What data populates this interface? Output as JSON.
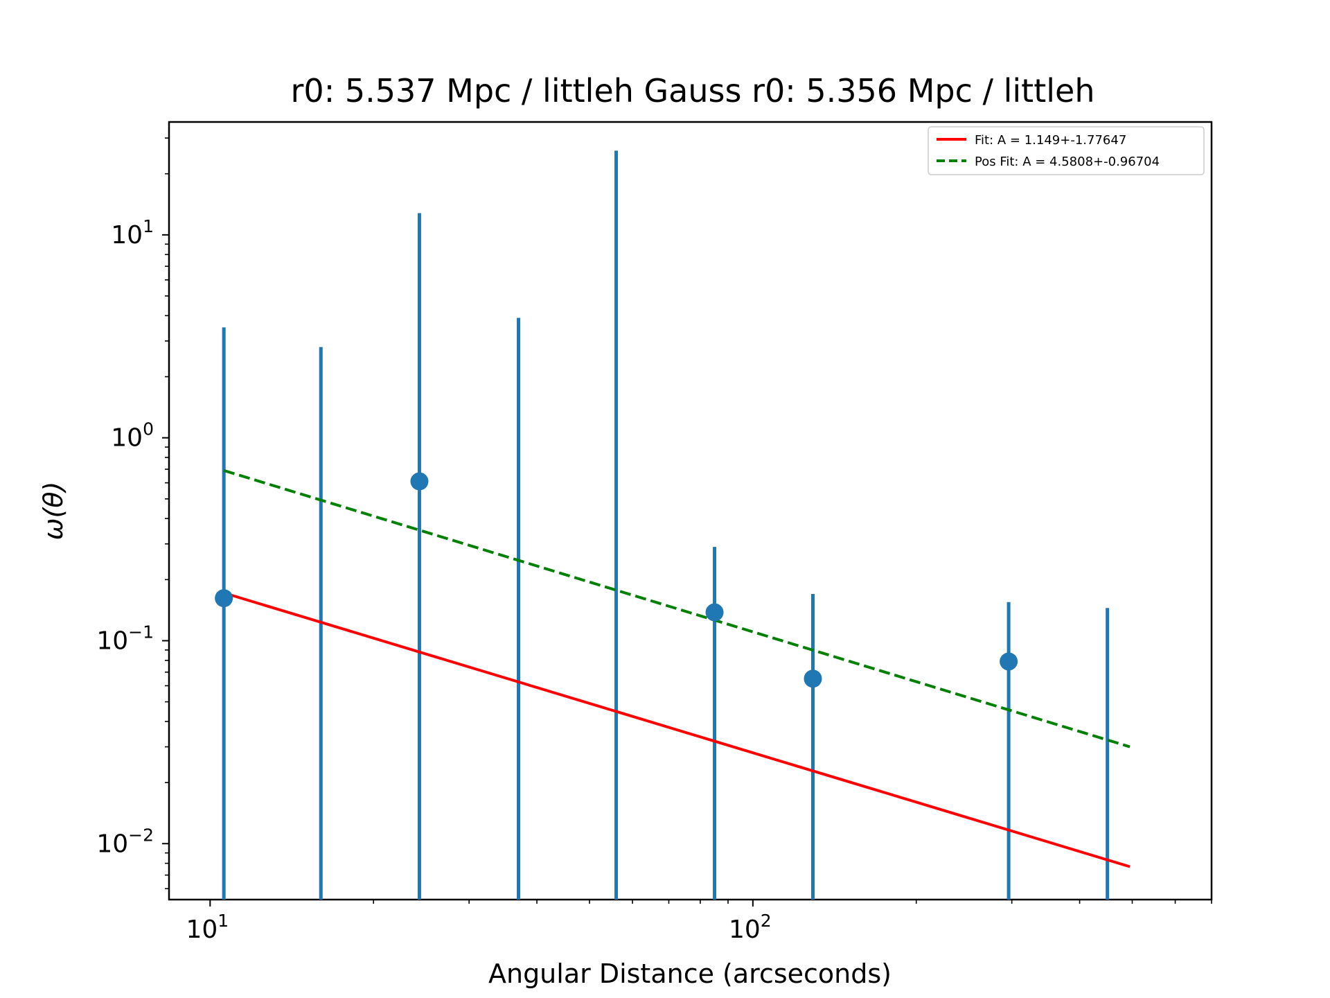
{
  "chart_data": {
    "type": "scatter",
    "title": "r0: 5.537 Mpc / littleh Gauss r0: 5.356 Mpc / littleh",
    "xlabel": "Angular Distance (arcseconds)",
    "ylabel": "ω(θ)",
    "xscale": "log",
    "yscale": "log",
    "xlim": [
      8.4,
      700
    ],
    "ylim": [
      0.0053,
      36
    ],
    "x_ticks": [
      {
        "value": 10,
        "base": "10",
        "exp": "1"
      },
      {
        "value": 100,
        "base": "10",
        "exp": "2"
      }
    ],
    "y_ticks": [
      {
        "value": 0.01,
        "base": "10",
        "exp": "−2"
      },
      {
        "value": 0.1,
        "base": "10",
        "exp": "−1"
      },
      {
        "value": 1,
        "base": "10",
        "exp": "0"
      },
      {
        "value": 10,
        "base": "10",
        "exp": "1"
      }
    ],
    "grid": false,
    "legend_position": "top-right",
    "legend": [
      {
        "label": "Fit: A = 1.149+-1.77647",
        "color": "#ff0000",
        "style": "solid"
      },
      {
        "label": "Pos Fit: A = 4.5808+-0.96704",
        "color": "#008000",
        "style": "dashed"
      }
    ],
    "error_bars": {
      "color": "#1f77b4",
      "points": [
        {
          "x": 10.6,
          "y": 0.162,
          "y_top": 3.5,
          "y_bottom": 0.0053
        },
        {
          "x": 16.0,
          "y": null,
          "y_top": 2.8,
          "y_bottom": 0.0053
        },
        {
          "x": 24.3,
          "y": 0.61,
          "y_top": 12.8,
          "y_bottom": 0.0053
        },
        {
          "x": 37.0,
          "y": null,
          "y_top": 3.9,
          "y_bottom": 0.0053
        },
        {
          "x": 56.0,
          "y": null,
          "y_top": 26.0,
          "y_bottom": 0.0053
        },
        {
          "x": 85.0,
          "y": 0.138,
          "y_top": 0.29,
          "y_bottom": 0.0053
        },
        {
          "x": 129.0,
          "y": 0.065,
          "y_top": 0.17,
          "y_bottom": 0.0053
        },
        {
          "x": 296.0,
          "y": 0.079,
          "y_top": 0.155,
          "y_bottom": 0.0053
        },
        {
          "x": 450.0,
          "y": null,
          "y_top": 0.145,
          "y_bottom": 0.0053
        }
      ]
    },
    "series": [
      {
        "name": "Fit: A = 1.149+-1.77647",
        "type": "line",
        "style": "solid",
        "color": "#ff0000",
        "x": [
          10.6,
          495.0
        ],
        "y": [
          0.172,
          0.0077
        ]
      },
      {
        "name": "Pos Fit: A = 4.5808+-0.96704",
        "type": "line",
        "style": "dashed",
        "color": "#008000",
        "x": [
          10.6,
          495.0
        ],
        "y": [
          0.69,
          0.03
        ]
      }
    ]
  }
}
